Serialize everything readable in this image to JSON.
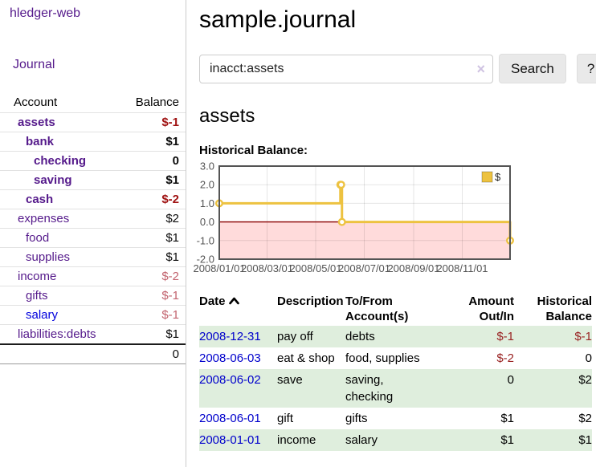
{
  "app": {
    "brand": "hledger-web",
    "nav_journal": "Journal"
  },
  "sidebar": {
    "columns": {
      "account": "Account",
      "balance": "Balance"
    },
    "accounts": [
      {
        "name": "assets",
        "indent": 1,
        "emph": true,
        "link_tone": "purple",
        "balance": "$-1",
        "balance_tone": "neg-strong"
      },
      {
        "name": "bank",
        "indent": 2,
        "emph": true,
        "link_tone": "purple",
        "balance": "$1",
        "balance_tone": "pos"
      },
      {
        "name": "checking",
        "indent": 3,
        "emph": true,
        "link_tone": "purple",
        "balance": "0",
        "balance_tone": "pos"
      },
      {
        "name": "saving",
        "indent": 3,
        "emph": true,
        "link_tone": "purple",
        "balance": "$1",
        "balance_tone": "pos"
      },
      {
        "name": "cash",
        "indent": 2,
        "emph": true,
        "link_tone": "purple",
        "balance": "$-2",
        "balance_tone": "neg-strong"
      },
      {
        "name": "expenses",
        "indent": 1,
        "emph": false,
        "link_tone": "purple",
        "balance": "$2",
        "balance_tone": "pos"
      },
      {
        "name": "food",
        "indent": 2,
        "emph": false,
        "link_tone": "purple",
        "balance": "$1",
        "balance_tone": "pos"
      },
      {
        "name": "supplies",
        "indent": 2,
        "emph": false,
        "link_tone": "purple",
        "balance": "$1",
        "balance_tone": "pos"
      },
      {
        "name": "income",
        "indent": 1,
        "emph": false,
        "link_tone": "purple",
        "balance": "$-2",
        "balance_tone": "neg-soft"
      },
      {
        "name": "gifts",
        "indent": 2,
        "emph": false,
        "link_tone": "purple",
        "balance": "$-1",
        "balance_tone": "neg-soft"
      },
      {
        "name": "salary",
        "indent": 2,
        "emph": false,
        "link_tone": "blue",
        "balance": "$-1",
        "balance_tone": "neg-soft"
      },
      {
        "name": "liabilities:debts",
        "indent": 1,
        "emph": false,
        "link_tone": "purple",
        "balance": "$1",
        "balance_tone": "pos"
      }
    ],
    "total": "0"
  },
  "header": {
    "title": "sample.journal"
  },
  "search": {
    "query": "inacct:assets",
    "clear_icon": "×",
    "button_label": "Search",
    "help_label": "?"
  },
  "account_page": {
    "heading": "assets",
    "chart_label": "Historical Balance:"
  },
  "chart_data": {
    "type": "line",
    "title": "Historical Balance",
    "style": "steps",
    "legend": [
      {
        "label": "$",
        "color": "#edc240"
      }
    ],
    "legend_position": "top-right",
    "grid": true,
    "xlim_days": [
      0,
      365
    ],
    "ylim": [
      -2,
      3
    ],
    "y_ticks": [
      {
        "label": "3.0",
        "value": 3
      },
      {
        "label": "2.0",
        "value": 2
      },
      {
        "label": "1.0",
        "value": 1
      },
      {
        "label": "0.0",
        "value": 0
      },
      {
        "label": "-1.0",
        "value": -1
      },
      {
        "label": "-2.0",
        "value": -2
      }
    ],
    "x_ticks": [
      {
        "label": "2008/01/01",
        "day": 0
      },
      {
        "label": "2008/03/01",
        "day": 60
      },
      {
        "label": "2008/05/01",
        "day": 121
      },
      {
        "label": "2008/07/01",
        "day": 182
      },
      {
        "label": "2008/09/01",
        "day": 244
      },
      {
        "label": "2008/11/01",
        "day": 305
      }
    ],
    "series": [
      {
        "name": "$",
        "color": "#edc240",
        "points": [
          {
            "date": "2008-01-01",
            "day": 0,
            "value": 1
          },
          {
            "date": "2008-06-01",
            "day": 152,
            "value": 2
          },
          {
            "date": "2008-06-02",
            "day": 153,
            "value": 2
          },
          {
            "date": "2008-06-03",
            "day": 154,
            "value": 0
          },
          {
            "date": "2008-12-31",
            "day": 365,
            "value": -1
          }
        ]
      }
    ],
    "negative_region_color": "#ffdbdb",
    "zero_line_color": "#8b0000",
    "border_color": "#545454",
    "tick_label_color": "#545454"
  },
  "register": {
    "columns": [
      {
        "label": "Date",
        "sorted": "asc"
      },
      {
        "label": "Description"
      },
      {
        "label": "To/From Account(s)"
      },
      {
        "label": "Amount Out/In"
      },
      {
        "label": "Historical Balance"
      }
    ],
    "rows": [
      {
        "date": "2008-12-31",
        "description": "pay off",
        "accounts": "debts",
        "amount": "$-1",
        "amount_neg": true,
        "balance": "$-1",
        "balance_neg": true
      },
      {
        "date": "2008-06-03",
        "description": "eat & shop",
        "accounts": "food, supplies",
        "amount": "$-2",
        "amount_neg": true,
        "balance": "0",
        "balance_neg": false
      },
      {
        "date": "2008-06-02",
        "description": "save",
        "accounts": "saving, checking",
        "amount": "0",
        "amount_neg": false,
        "balance": "$2",
        "balance_neg": false
      },
      {
        "date": "2008-06-01",
        "description": "gift",
        "accounts": "gifts",
        "amount": "$1",
        "amount_neg": false,
        "balance": "$2",
        "balance_neg": false
      },
      {
        "date": "2008-01-01",
        "description": "income",
        "accounts": "salary",
        "amount": "$1",
        "amount_neg": false,
        "balance": "$1",
        "balance_neg": false
      }
    ]
  }
}
